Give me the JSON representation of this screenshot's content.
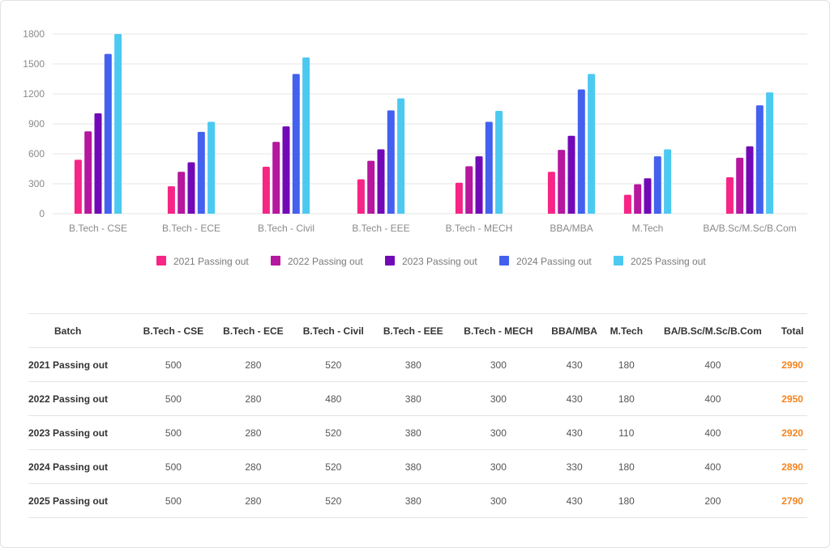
{
  "chart_data": {
    "type": "bar",
    "categories": [
      "B.Tech - CSE",
      "B.Tech - ECE",
      "B.Tech - Civil",
      "B.Tech - EEE",
      "B.Tech - MECH",
      "BBA/MBA",
      "M.Tech",
      "BA/B.Sc/M.Sc/B.Com"
    ],
    "series": [
      {
        "name": "2021 Passing out",
        "color": "#f72585",
        "values": [
          540,
          275,
          470,
          345,
          310,
          420,
          190,
          365
        ]
      },
      {
        "name": "2022 Passing out",
        "color": "#b5179e",
        "values": [
          825,
          420,
          720,
          530,
          475,
          640,
          295,
          560
        ]
      },
      {
        "name": "2023 Passing out",
        "color": "#7209b7",
        "values": [
          1005,
          515,
          875,
          645,
          575,
          780,
          355,
          675
        ]
      },
      {
        "name": "2024 Passing out",
        "color": "#4361ee",
        "values": [
          1600,
          820,
          1400,
          1035,
          920,
          1245,
          575,
          1085
        ]
      },
      {
        "name": "2025 Passing out",
        "color": "#4cc9f0",
        "values": [
          1800,
          920,
          1565,
          1155,
          1030,
          1400,
          645,
          1215
        ]
      }
    ],
    "yticks": [
      "0",
      "300",
      "600",
      "900",
      "1200",
      "1500",
      "1800"
    ],
    "ylim": [
      0,
      1800
    ],
    "grid": true,
    "legend": "bottom"
  },
  "table": {
    "headers": [
      "Batch",
      "B.Tech - CSE",
      "B.Tech - ECE",
      "B.Tech - Civil",
      "B.Tech - EEE",
      "B.Tech - MECH",
      "BBA/MBA",
      "M.Tech",
      "BA/B.Sc/M.Sc/B.Com",
      "Total"
    ],
    "rows": [
      {
        "batch": "2021 Passing out",
        "cells": [
          "500",
          "280",
          "520",
          "380",
          "300",
          "430",
          "180",
          "400"
        ],
        "total": "2990"
      },
      {
        "batch": "2022 Passing out",
        "cells": [
          "500",
          "280",
          "480",
          "380",
          "300",
          "430",
          "180",
          "400"
        ],
        "total": "2950"
      },
      {
        "batch": "2023 Passing out",
        "cells": [
          "500",
          "280",
          "520",
          "380",
          "300",
          "430",
          "110",
          "400"
        ],
        "total": "2920"
      },
      {
        "batch": "2024 Passing out",
        "cells": [
          "500",
          "280",
          "520",
          "380",
          "300",
          "330",
          "180",
          "400"
        ],
        "total": "2890"
      },
      {
        "batch": "2025 Passing out",
        "cells": [
          "500",
          "280",
          "520",
          "380",
          "300",
          "430",
          "180",
          "200"
        ],
        "total": "2790"
      }
    ],
    "total_color": "#f5841f"
  }
}
